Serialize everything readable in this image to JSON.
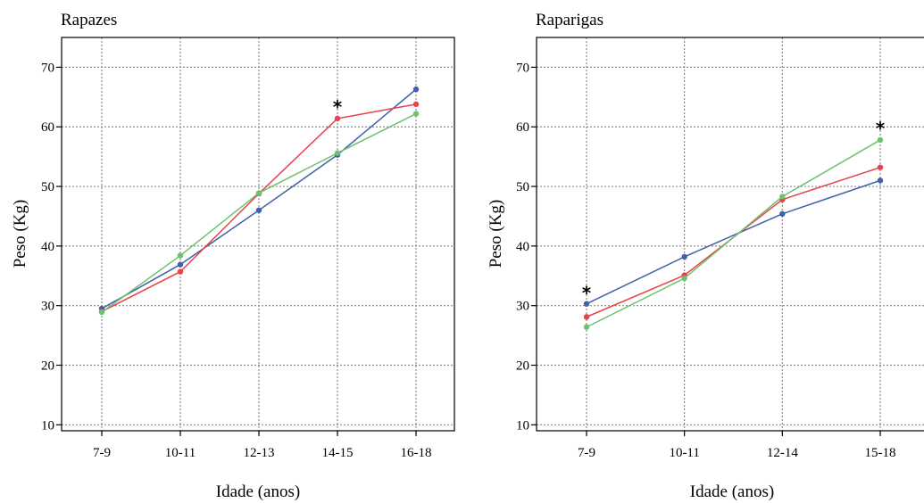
{
  "colors": {
    "blue": "#4062a8",
    "red": "#e8424a",
    "green": "#6cc26e"
  },
  "chart_data": [
    {
      "type": "line",
      "title": "Rapazes",
      "xlabel": "Idade (anos)",
      "ylabel": "Peso (Kg)",
      "categories": [
        "7-9",
        "10-11",
        "12-13",
        "14-15",
        "16-18"
      ],
      "ylim": [
        9,
        75
      ],
      "yticks": [
        10,
        20,
        30,
        40,
        50,
        60,
        70
      ],
      "grid": true,
      "series": [
        {
          "color": "blue",
          "values": [
            29.5,
            36.9,
            46.0,
            55.3,
            66.3
          ]
        },
        {
          "color": "red",
          "values": [
            29.0,
            35.7,
            48.8,
            61.4,
            63.8
          ]
        },
        {
          "color": "green",
          "values": [
            28.9,
            38.4,
            48.9,
            55.6,
            62.2
          ]
        }
      ],
      "annotations": [
        {
          "text": "*",
          "category": "14-15",
          "y": 63.8
        }
      ]
    },
    {
      "type": "line",
      "title": "Raparigas",
      "xlabel": "Idade (anos)",
      "ylabel": "Peso (Kg)",
      "categories": [
        "7-9",
        "10-11",
        "12-14",
        "15-18"
      ],
      "ylim": [
        9,
        75
      ],
      "yticks": [
        10,
        20,
        30,
        40,
        50,
        60,
        70
      ],
      "grid": true,
      "series": [
        {
          "color": "blue",
          "values": [
            30.3,
            38.2,
            45.4,
            51.0
          ]
        },
        {
          "color": "red",
          "values": [
            28.1,
            35.1,
            47.8,
            53.2
          ]
        },
        {
          "color": "green",
          "values": [
            26.4,
            34.6,
            48.3,
            57.8
          ]
        }
      ],
      "annotations": [
        {
          "text": "*",
          "category": "7-9",
          "y": 32.6
        },
        {
          "text": "*",
          "category": "15-18",
          "y": 60.2
        }
      ]
    }
  ]
}
